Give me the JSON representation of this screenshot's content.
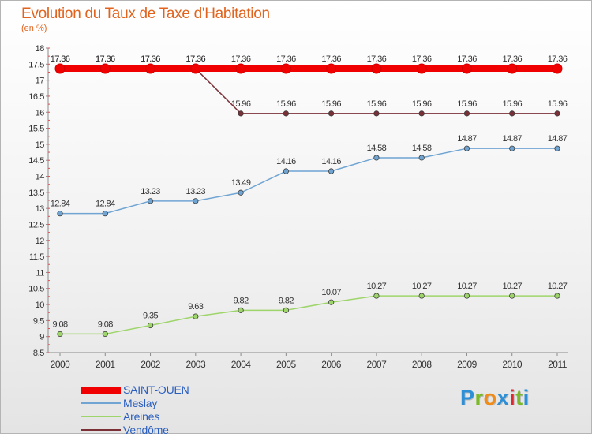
{
  "header": {
    "title": "Evolution du Taux de Taxe d'Habitation",
    "subtitle": "(en %)"
  },
  "brand": {
    "letters": [
      "P",
      "r",
      "o",
      "x",
      "i",
      "t",
      "i"
    ],
    "colors": [
      "#2d8fd6",
      "#7bb928",
      "#f08c1a",
      "#2d8fd6",
      "#e0262e",
      "#7bb928",
      "#2d8fd6"
    ]
  },
  "chart_data": {
    "type": "line",
    "title": "Evolution du Taux de Taxe d'Habitation",
    "ylabel": "(en %)",
    "xlabel": "",
    "x": [
      "2000",
      "2001",
      "2002",
      "2003",
      "2004",
      "2005",
      "2006",
      "2007",
      "2008",
      "2009",
      "2010",
      "2011"
    ],
    "ylim": [
      8.5,
      18
    ],
    "yticks": [
      "8.5",
      "9",
      "9.5",
      "10",
      "10.5",
      "11",
      "11.5",
      "12",
      "12.5",
      "13",
      "13.5",
      "14",
      "14.5",
      "15",
      "15.5",
      "16",
      "16.5",
      "17",
      "17.5",
      "18"
    ],
    "grid": false,
    "legend_position": "bottom-left",
    "series": [
      {
        "name": "SAINT-OUEN",
        "color": "#f00000",
        "values": [
          17.36,
          17.36,
          17.36,
          17.36,
          17.36,
          17.36,
          17.36,
          17.36,
          17.36,
          17.36,
          17.36,
          17.36
        ],
        "labels": [
          "17.36",
          "17.36",
          "17.36",
          "17.36",
          "17.36",
          "17.36",
          "17.36",
          "17.36",
          "17.36",
          "17.36",
          "17.36",
          "17.36"
        ]
      },
      {
        "name": "Meslay",
        "color": "#6fa4d3",
        "values": [
          12.84,
          12.84,
          13.23,
          13.23,
          13.49,
          14.16,
          14.16,
          14.58,
          14.58,
          14.87,
          14.87,
          14.87
        ],
        "labels": [
          "12.84",
          "12.84",
          "13.23",
          "13.23",
          "13.49",
          "14.16",
          "14.16",
          "14.58",
          "14.58",
          "14.87",
          "14.87",
          "14.87"
        ]
      },
      {
        "name": "Areines",
        "color": "#9ed56a",
        "values": [
          9.08,
          9.08,
          9.35,
          9.63,
          9.82,
          9.82,
          10.07,
          10.27,
          10.27,
          10.27,
          10.27,
          10.27
        ],
        "labels": [
          "9.08",
          "9.08",
          "9.35",
          "9.63",
          "9.82",
          "9.82",
          "10.07",
          "10.27",
          "10.27",
          "10.27",
          "10.27",
          "10.27"
        ]
      },
      {
        "name": "Vendôme",
        "color": "#7b3038",
        "values": [
          17.36,
          17.36,
          17.36,
          17.36,
          15.96,
          15.96,
          15.96,
          15.96,
          15.96,
          15.96,
          15.96,
          15.96
        ],
        "labels": [
          "17.36",
          "17.36",
          "17.36",
          "17.36",
          "15.96",
          "15.96",
          "15.96",
          "15.96",
          "15.96",
          "15.96",
          "15.96",
          "15.96"
        ]
      }
    ]
  }
}
